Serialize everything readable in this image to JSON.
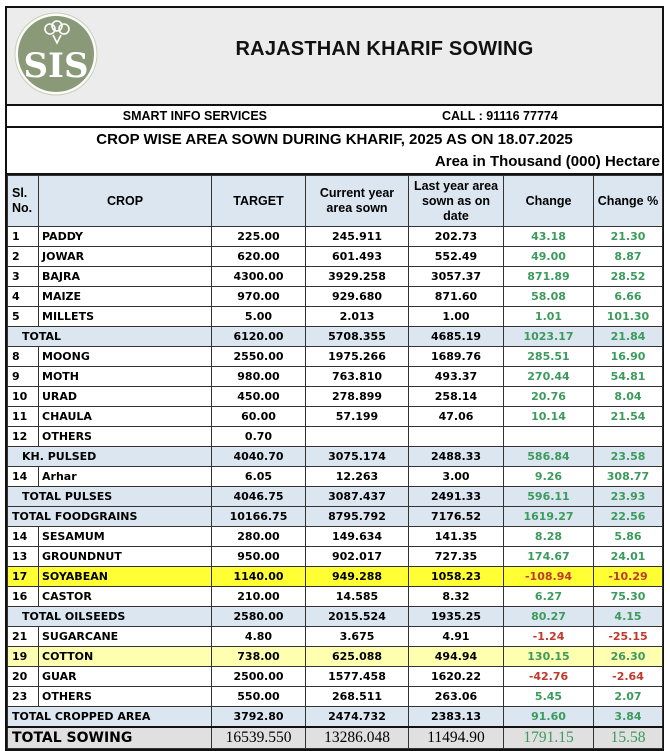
{
  "header": {
    "logo_text": "SIS",
    "title": "RAJASTHAN KHARIF SOWING",
    "company": "SMART INFO SERVICES",
    "call": "CALL : 91116 77774",
    "subtitle": "CROP WISE AREA SOWN DURING KHARIF, 2025 AS ON 18.07.2025",
    "unit": "Area in Thousand (000) Hectare"
  },
  "colors": {
    "positive": "#3c9a5c",
    "negative": "#c0392b",
    "total_row": "#dce6f1",
    "highlight_soyabean": "#ffff33",
    "highlight_cotton": "#ffffb0"
  },
  "table": {
    "columns": [
      "Sl. No.",
      "CROP",
      "TARGET",
      "Current year area sown",
      "Last year area sown as on date",
      "Change",
      "Change %"
    ],
    "rows": [
      {
        "type": "item",
        "sl": "1",
        "crop": "PADDY",
        "target": "225.00",
        "current": "245.911",
        "last": "202.73",
        "change": "43.18",
        "pct": "21.30"
      },
      {
        "type": "item",
        "sl": "2",
        "crop": "JOWAR",
        "target": "620.00",
        "current": "601.493",
        "last": "552.49",
        "change": "49.00",
        "pct": "8.87"
      },
      {
        "type": "item",
        "sl": "3",
        "crop": "BAJRA",
        "target": "4300.00",
        "current": "3929.258",
        "last": "3057.37",
        "change": "871.89",
        "pct": "28.52"
      },
      {
        "type": "item",
        "sl": "4",
        "crop": "MAIZE",
        "target": "970.00",
        "current": "929.680",
        "last": "871.60",
        "change": "58.08",
        "pct": "6.66"
      },
      {
        "type": "item",
        "sl": "5",
        "crop": "MILLETS",
        "target": "5.00",
        "current": "2.013",
        "last": "1.00",
        "change": "1.01",
        "pct": "101.30"
      },
      {
        "type": "total",
        "crop": "TOTAL",
        "target": "6120.00",
        "current": "5708.355",
        "last": "4685.19",
        "change": "1023.17",
        "pct": "21.84"
      },
      {
        "type": "item",
        "sl": "8",
        "crop": "MOONG",
        "target": "2550.00",
        "current": "1975.266",
        "last": "1689.76",
        "change": "285.51",
        "pct": "16.90"
      },
      {
        "type": "item",
        "sl": "9",
        "crop": "MOTH",
        "target": "980.00",
        "current": "763.810",
        "last": "493.37",
        "change": "270.44",
        "pct": "54.81"
      },
      {
        "type": "item",
        "sl": "10",
        "crop": "URAD",
        "target": "450.00",
        "current": "278.899",
        "last": "258.14",
        "change": "20.76",
        "pct": "8.04"
      },
      {
        "type": "item",
        "sl": "11",
        "crop": "CHAULA",
        "target": "60.00",
        "current": "57.199",
        "last": "47.06",
        "change": "10.14",
        "pct": "21.54"
      },
      {
        "type": "item",
        "sl": "12",
        "crop": "OTHERS",
        "target": "0.70",
        "current": "",
        "last": "",
        "change": "",
        "pct": ""
      },
      {
        "type": "total",
        "crop": "KH. PULSED",
        "target": "4040.70",
        "current": "3075.174",
        "last": "2488.33",
        "change": "586.84",
        "pct": "23.58"
      },
      {
        "type": "item",
        "sl": "14",
        "crop": "Arhar",
        "target": "6.05",
        "current": "12.263",
        "last": "3.00",
        "change": "9.26",
        "pct": "308.77"
      },
      {
        "type": "total",
        "crop": "TOTAL PULSES",
        "target": "4046.75",
        "current": "3087.437",
        "last": "2491.33",
        "change": "596.11",
        "pct": "23.93"
      },
      {
        "type": "total-wide",
        "crop": "TOTAL  FOODGRAINS",
        "target": "10166.75",
        "current": "8795.792",
        "last": "7176.52",
        "change": "1619.27",
        "pct": "22.56"
      },
      {
        "type": "item",
        "sl": "14",
        "crop": "SESAMUM",
        "target": "280.00",
        "current": "149.634",
        "last": "141.35",
        "change": "8.28",
        "pct": "5.86"
      },
      {
        "type": "item",
        "sl": "13",
        "crop": "GROUNDNUT",
        "target": "950.00",
        "current": "902.017",
        "last": "727.35",
        "change": "174.67",
        "pct": "24.01"
      },
      {
        "type": "hl1",
        "sl": "17",
        "crop": "SOYABEAN",
        "target": "1140.00",
        "current": "949.288",
        "last": "1058.23",
        "change": "-108.94",
        "pct": "-10.29"
      },
      {
        "type": "item",
        "sl": "16",
        "crop": "CASTOR",
        "target": "210.00",
        "current": "14.585",
        "last": "8.32",
        "change": "6.27",
        "pct": "75.30"
      },
      {
        "type": "total",
        "crop": "TOTAL OILSEEDS",
        "target": "2580.00",
        "current": "2015.524",
        "last": "1935.25",
        "change": "80.27",
        "pct": "4.15"
      },
      {
        "type": "item",
        "sl": "21",
        "crop": "SUGARCANE",
        "target": "4.80",
        "current": "3.675",
        "last": "4.91",
        "change": "-1.24",
        "pct": "-25.15"
      },
      {
        "type": "hl2",
        "sl": "19",
        "crop": "COTTON",
        "target": "738.00",
        "current": "625.088",
        "last": "494.94",
        "change": "130.15",
        "pct": "26.30"
      },
      {
        "type": "item",
        "sl": "20",
        "crop": "GUAR",
        "target": "2500.00",
        "current": "1577.458",
        "last": "1620.22",
        "change": "-42.76",
        "pct": "-2.64"
      },
      {
        "type": "item",
        "sl": "23",
        "crop": "OTHERS",
        "target": "550.00",
        "current": "268.511",
        "last": "263.06",
        "change": "5.45",
        "pct": "2.07"
      },
      {
        "type": "total-wide",
        "crop": "TOTAL CROPPED AREA",
        "target": "3792.80",
        "current": "2474.732",
        "last": "2383.13",
        "change": "91.60",
        "pct": "3.84"
      },
      {
        "type": "grand",
        "crop": "TOTAL SOWING",
        "target": "16539.550",
        "current": "13286.048",
        "last": "11494.90",
        "change": "1791.15",
        "pct": "15.58"
      }
    ]
  }
}
